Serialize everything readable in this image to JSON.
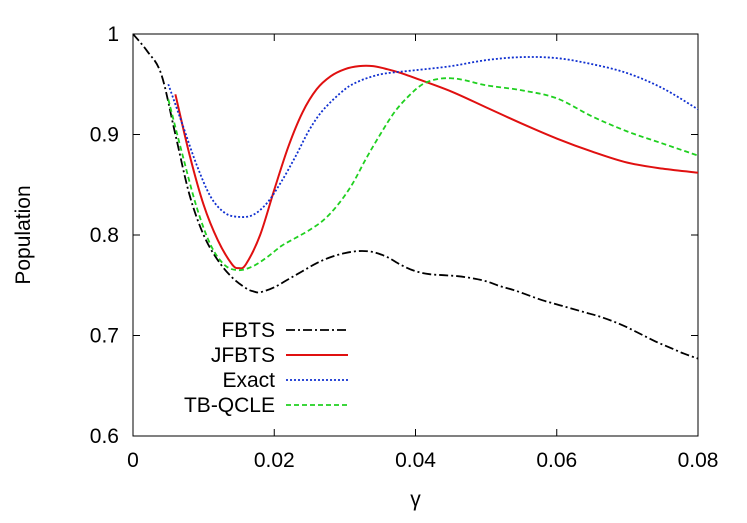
{
  "chart_data": {
    "type": "line",
    "title": "",
    "xlabel": "γ",
    "ylabel": "Population",
    "xlim": [
      0,
      0.08
    ],
    "ylim": [
      0.6,
      1.0
    ],
    "x_ticks": [
      "0",
      "0.02",
      "0.04",
      "0.06",
      "0.08"
    ],
    "y_ticks": [
      "0.6",
      "0.7",
      "0.8",
      "0.9",
      "1"
    ],
    "grid": false,
    "legend_position": "bottom-left",
    "series": [
      {
        "name": "FBTS",
        "color": "#000000",
        "dash": "dash-dot",
        "x": [
          0,
          0.002,
          0.004,
          0.006,
          0.008,
          0.01,
          0.012,
          0.014,
          0.016,
          0.017,
          0.018,
          0.02,
          0.022,
          0.024,
          0.026,
          0.028,
          0.03,
          0.032,
          0.034,
          0.036,
          0.038,
          0.04,
          0.042,
          0.044,
          0.046,
          0.048,
          0.05,
          0.052,
          0.054,
          0.056,
          0.058,
          0.06,
          0.062,
          0.064,
          0.066,
          0.068,
          0.07,
          0.072,
          0.074,
          0.076,
          0.078,
          0.08
        ],
        "y": [
          1.0,
          0.983,
          0.96,
          0.9,
          0.84,
          0.8,
          0.775,
          0.758,
          0.747,
          0.744,
          0.743,
          0.748,
          0.756,
          0.764,
          0.772,
          0.778,
          0.782,
          0.784,
          0.783,
          0.778,
          0.77,
          0.764,
          0.761,
          0.76,
          0.759,
          0.757,
          0.754,
          0.749,
          0.745,
          0.74,
          0.735,
          0.731,
          0.727,
          0.723,
          0.719,
          0.714,
          0.708,
          0.701,
          0.694,
          0.688,
          0.682,
          0.677
        ]
      },
      {
        "name": "JFBTS",
        "color": "#e01010",
        "dash": "solid",
        "x": [
          0.006,
          0.008,
          0.01,
          0.012,
          0.014,
          0.015,
          0.016,
          0.018,
          0.02,
          0.022,
          0.024,
          0.026,
          0.028,
          0.03,
          0.032,
          0.034,
          0.036,
          0.038,
          0.04,
          0.045,
          0.05,
          0.055,
          0.06,
          0.065,
          0.07,
          0.075,
          0.08
        ],
        "y": [
          0.94,
          0.88,
          0.83,
          0.795,
          0.771,
          0.767,
          0.771,
          0.8,
          0.845,
          0.888,
          0.922,
          0.945,
          0.958,
          0.965,
          0.968,
          0.968,
          0.965,
          0.961,
          0.956,
          0.943,
          0.927,
          0.911,
          0.896,
          0.883,
          0.872,
          0.866,
          0.862
        ]
      },
      {
        "name": "Exact",
        "color": "#1030d0",
        "dash": "dotted",
        "x": [
          0.005,
          0.007,
          0.009,
          0.011,
          0.013,
          0.015,
          0.017,
          0.019,
          0.021,
          0.023,
          0.025,
          0.027,
          0.03,
          0.032,
          0.034,
          0.036,
          0.04,
          0.045,
          0.05,
          0.055,
          0.06,
          0.065,
          0.07,
          0.075,
          0.08
        ],
        "y": [
          0.95,
          0.91,
          0.87,
          0.838,
          0.822,
          0.818,
          0.82,
          0.832,
          0.853,
          0.878,
          0.905,
          0.925,
          0.945,
          0.953,
          0.958,
          0.961,
          0.964,
          0.968,
          0.974,
          0.977,
          0.976,
          0.97,
          0.961,
          0.946,
          0.925
        ]
      },
      {
        "name": "TB-QCLE",
        "color": "#20d020",
        "dash": "dashed",
        "x": [
          0.005,
          0.007,
          0.009,
          0.011,
          0.013,
          0.015,
          0.017,
          0.019,
          0.021,
          0.023,
          0.025,
          0.027,
          0.029,
          0.031,
          0.033,
          0.035,
          0.037,
          0.039,
          0.041,
          0.043,
          0.045,
          0.047,
          0.05,
          0.055,
          0.06,
          0.065,
          0.07,
          0.075,
          0.08
        ],
        "y": [
          0.935,
          0.88,
          0.828,
          0.79,
          0.77,
          0.765,
          0.769,
          0.778,
          0.789,
          0.797,
          0.805,
          0.815,
          0.83,
          0.85,
          0.876,
          0.9,
          0.922,
          0.938,
          0.95,
          0.955,
          0.956,
          0.954,
          0.949,
          0.944,
          0.936,
          0.918,
          0.903,
          0.891,
          0.879
        ]
      }
    ]
  }
}
